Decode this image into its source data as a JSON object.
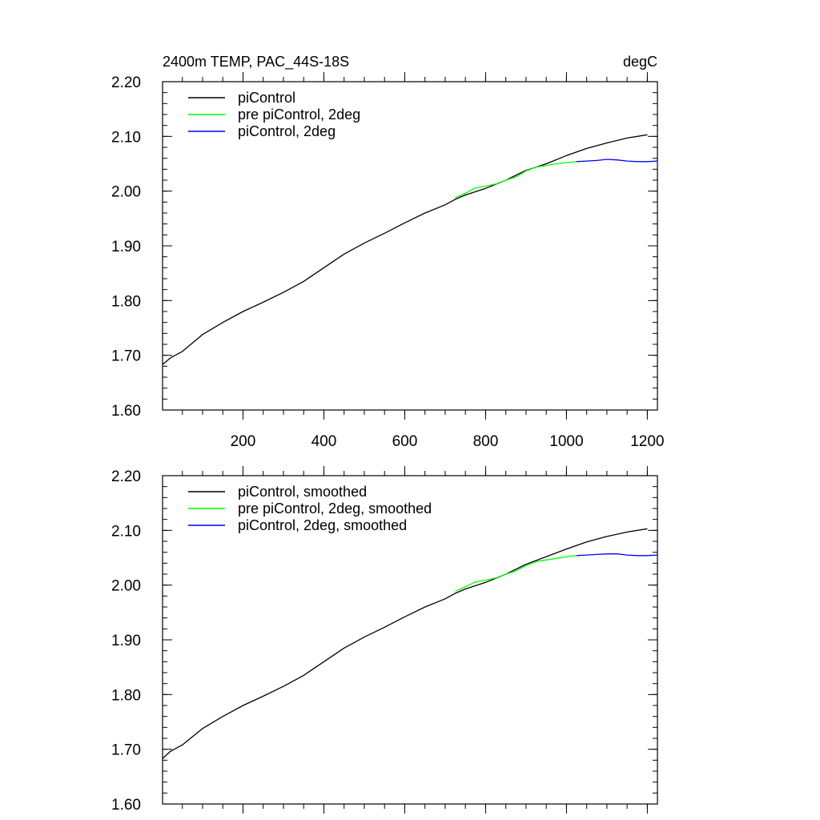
{
  "page": {
    "left_title": "2400m TEMP, PAC_44S-18S",
    "right_title": "degC"
  },
  "colors": {
    "piControl": "#000000",
    "pre_piControl_2deg": "#00ff00",
    "piControl_2deg": "#0000ff"
  },
  "chart_data": [
    {
      "type": "line",
      "title": "2400m TEMP, PAC_44S-18S",
      "units": "degC",
      "xlabel": "",
      "ylabel": "",
      "xlim": [
        1,
        1225
      ],
      "ylim": [
        1.6,
        2.2
      ],
      "x_ticks": [
        200,
        400,
        600,
        800,
        1000,
        1200
      ],
      "x_tick_labels": [
        "200",
        "400",
        "600",
        "800",
        "1000",
        "1200"
      ],
      "y_ticks": [
        1.6,
        1.7,
        1.8,
        1.9,
        2.0,
        2.1,
        2.2
      ],
      "y_tick_labels": [
        "1.60",
        "1.70",
        "1.80",
        "1.90",
        "2.00",
        "2.10",
        "2.20"
      ],
      "legend_position": "top-left",
      "series": [
        {
          "name": "piControl",
          "color": "#000000",
          "x": [
            1,
            20,
            50,
            100,
            150,
            200,
            250,
            300,
            350,
            400,
            450,
            500,
            550,
            600,
            650,
            700,
            725,
            750,
            800,
            850,
            900,
            950,
            1000,
            1050,
            1100,
            1150,
            1200
          ],
          "y": [
            1.683,
            1.695,
            1.707,
            1.738,
            1.76,
            1.78,
            1.797,
            1.815,
            1.835,
            1.86,
            1.885,
            1.905,
            1.923,
            1.942,
            1.96,
            1.975,
            1.985,
            1.993,
            2.005,
            2.02,
            2.038,
            2.05,
            2.065,
            2.078,
            2.088,
            2.097,
            2.103
          ]
        },
        {
          "name": "pre piControl, 2deg",
          "color": "#00ff00",
          "x": [
            725,
            750,
            775,
            800,
            825,
            850,
            875,
            900,
            925,
            950,
            975,
            1000,
            1025
          ],
          "y": [
            1.988,
            1.996,
            2.006,
            2.009,
            2.013,
            2.02,
            2.026,
            2.037,
            2.044,
            2.047,
            2.05,
            2.052,
            2.054
          ]
        },
        {
          "name": "piControl, 2deg",
          "color": "#0000ff",
          "x": [
            1025,
            1050,
            1075,
            1100,
            1125,
            1150,
            1175,
            1200,
            1225
          ],
          "y": [
            2.054,
            2.055,
            2.056,
            2.058,
            2.057,
            2.055,
            2.054,
            2.054,
            2.055
          ]
        }
      ]
    },
    {
      "type": "line",
      "title": "",
      "xlabel": "",
      "ylabel": "",
      "xlim": [
        1,
        1225
      ],
      "ylim": [
        1.6,
        2.2
      ],
      "x_ticks": [
        200,
        400,
        600,
        800,
        1000,
        1200
      ],
      "x_tick_labels": [],
      "y_ticks": [
        1.6,
        1.7,
        1.8,
        1.9,
        2.0,
        2.1,
        2.2
      ],
      "y_tick_labels": [
        "1.60",
        "1.70",
        "1.80",
        "1.90",
        "2.00",
        "2.10",
        "2.20"
      ],
      "legend_position": "top-left",
      "series": [
        {
          "name": "piControl, smoothed",
          "color": "#000000",
          "x": [
            1,
            20,
            50,
            100,
            150,
            200,
            250,
            300,
            350,
            400,
            450,
            500,
            550,
            600,
            650,
            700,
            725,
            750,
            800,
            850,
            900,
            950,
            1000,
            1050,
            1100,
            1150,
            1200
          ],
          "y": [
            1.683,
            1.696,
            1.708,
            1.738,
            1.76,
            1.78,
            1.797,
            1.815,
            1.835,
            1.86,
            1.885,
            1.905,
            1.923,
            1.942,
            1.96,
            1.975,
            1.985,
            1.993,
            2.005,
            2.02,
            2.038,
            2.052,
            2.066,
            2.079,
            2.089,
            2.097,
            2.103
          ]
        },
        {
          "name": "pre piControl, 2deg, smoothed",
          "color": "#00ff00",
          "x": [
            725,
            750,
            775,
            800,
            825,
            850,
            875,
            900,
            925,
            950,
            975,
            1000,
            1025
          ],
          "y": [
            1.989,
            1.997,
            2.006,
            2.009,
            2.013,
            2.02,
            2.026,
            2.036,
            2.043,
            2.046,
            2.049,
            2.052,
            2.054
          ]
        },
        {
          "name": "piControl, 2deg, smoothed",
          "color": "#0000ff",
          "x": [
            1025,
            1050,
            1075,
            1100,
            1125,
            1150,
            1175,
            1200,
            1225
          ],
          "y": [
            2.054,
            2.055,
            2.056,
            2.057,
            2.057,
            2.055,
            2.054,
            2.054,
            2.055
          ]
        }
      ]
    }
  ]
}
